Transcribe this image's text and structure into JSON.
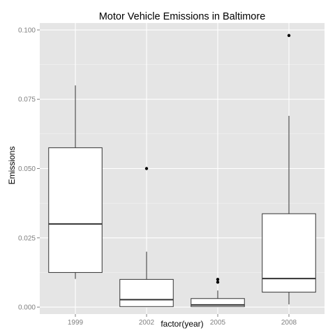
{
  "chart_data": {
    "type": "boxplot",
    "title": "Motor Vehicle Emissions in Baltimore",
    "xlabel": "factor(year)",
    "ylabel": "Emissions",
    "categories": [
      "1999",
      "2002",
      "2005",
      "2008"
    ],
    "ylim": [
      -0.0025,
      0.1025
    ],
    "yticks": [
      0.0,
      0.025,
      0.05,
      0.075,
      0.1
    ],
    "ytick_labels": [
      "0.000",
      "0.025",
      "0.050",
      "0.075",
      "0.100"
    ],
    "grid": true,
    "background_color": "#e5e5e5",
    "grid_color": "#ffffff",
    "boxes": [
      {
        "category": "1999",
        "whisker_low": 0.0102,
        "q1": 0.0125,
        "median": 0.03,
        "q3": 0.0575,
        "whisker_high": 0.08,
        "outliers": []
      },
      {
        "category": "2002",
        "whisker_low": 0.0002,
        "q1": 0.0002,
        "median": 0.0027,
        "q3": 0.01,
        "whisker_high": 0.02,
        "outliers": [
          0.05
        ]
      },
      {
        "category": "2005",
        "whisker_low": 0.0002,
        "q1": 0.0002,
        "median": 0.0008,
        "q3": 0.0031,
        "whisker_high": 0.006,
        "outliers": [
          0.009,
          0.01
        ]
      },
      {
        "category": "2008",
        "whisker_low": 0.001,
        "q1": 0.0054,
        "median": 0.0103,
        "q3": 0.0337,
        "whisker_high": 0.069,
        "outliers": [
          0.098
        ]
      }
    ]
  }
}
